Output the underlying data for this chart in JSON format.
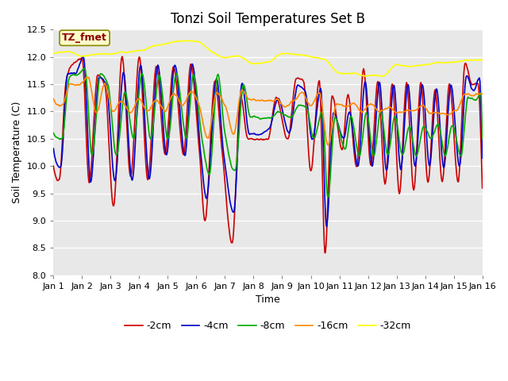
{
  "title": "Tonzi Soil Temperatures Set B",
  "xlabel": "Time",
  "ylabel": "Soil Temperature (C)",
  "ylim": [
    8.0,
    12.5
  ],
  "xlim": [
    0,
    15
  ],
  "xtick_labels": [
    "Jan 1",
    "Jan 2",
    "Jan 3",
    "Jan 4",
    "Jan 5",
    "Jan 6",
    "Jan 7",
    "Jan 8",
    "Jan 9",
    "Jan 10",
    "Jan 11",
    "Jan 12",
    "Jan 13",
    "Jan 14",
    "Jan 15",
    "Jan 16"
  ],
  "ytick_vals": [
    8.0,
    8.5,
    9.0,
    9.5,
    10.0,
    10.5,
    11.0,
    11.5,
    12.0,
    12.5
  ],
  "legend_entries": [
    "-2cm",
    "-4cm",
    "-8cm",
    "-16cm",
    "-32cm"
  ],
  "colors": [
    "#cc0000",
    "#0000cc",
    "#00aa00",
    "#ff8800",
    "#ffff00"
  ],
  "annotation_text": "TZ_fmet",
  "annotation_color": "#880000",
  "annotation_bg": "#ffffcc",
  "annotation_border": "#888800",
  "title_fontsize": 12,
  "axis_fontsize": 9,
  "tick_fontsize": 8
}
